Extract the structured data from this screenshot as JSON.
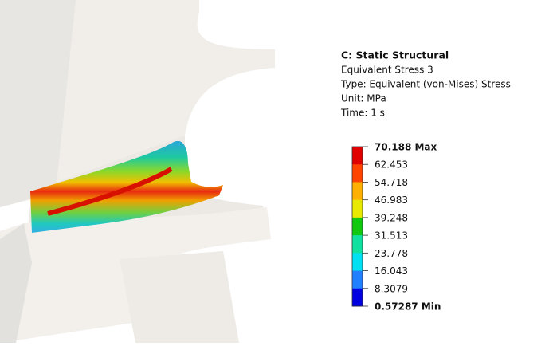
{
  "header": {
    "title": "C: Static Structural",
    "lines": [
      "Equivalent Stress 3",
      "Type: Equivalent (von-Mises) Stress",
      "Unit: MPa",
      "Time: 1 s"
    ]
  },
  "legend": {
    "labels": [
      "70.188 Max",
      "62.453",
      "54.718",
      "46.983",
      "39.248",
      "31.513",
      "23.778",
      "16.043",
      "8.3079",
      "0.57287 Min"
    ]
  }
}
